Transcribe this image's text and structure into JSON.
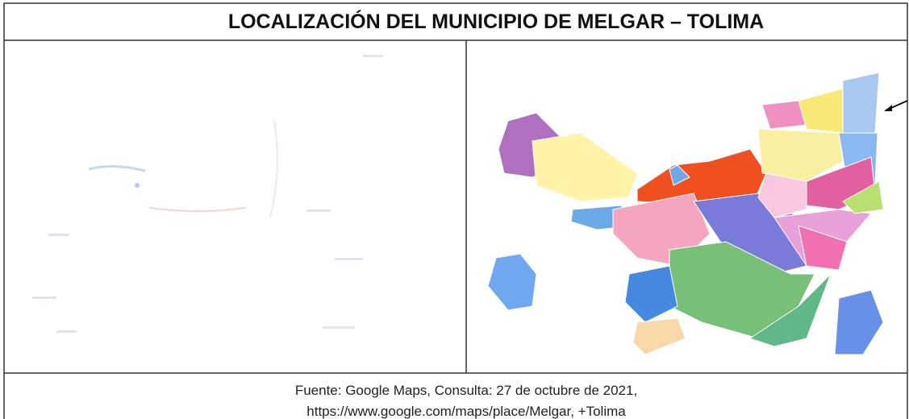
{
  "header": {
    "title": "LOCALIZACIÓN DEL MUNICIPIO DE MELGAR – TOLIMA"
  },
  "caption": {
    "lines": [
      "Fuente: Google Maps, Consulta: 27 de octubre de 2021,",
      "https://www.google.com/maps/place/Melgar, +Tolima"
    ]
  }
}
